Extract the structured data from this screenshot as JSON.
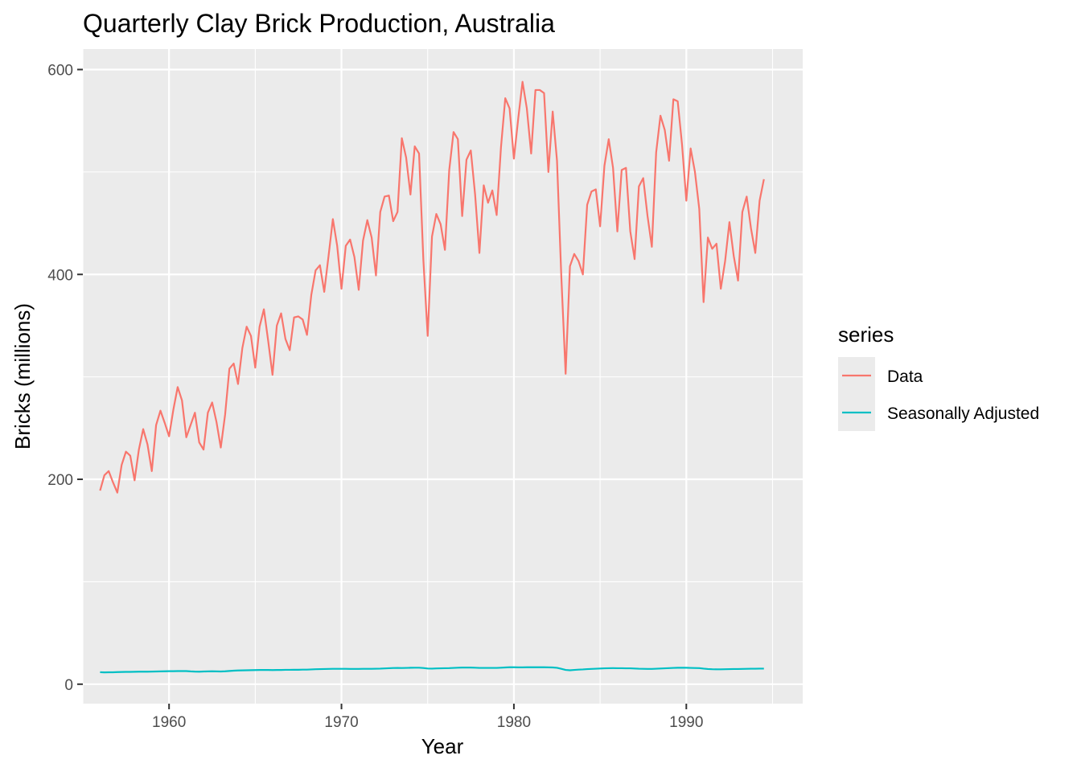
{
  "chart_data": {
    "type": "line",
    "title": "Quarterly Clay Brick Production, Australia",
    "xlabel": "Year",
    "ylabel": "Bricks (millions)",
    "xlim": [
      1955.0,
      1996.75
    ],
    "ylim": [
      -19,
      620
    ],
    "x_ticks": [
      1960,
      1970,
      1980,
      1990
    ],
    "y_ticks": [
      0,
      200,
      400,
      600
    ],
    "grid": true,
    "legend": {
      "title": "series",
      "position": "right"
    },
    "colors": {
      "data": "#F8766D",
      "seasonally_adjusted": "#00BFC4",
      "panel": "#EBEBEB",
      "grid": "#FFFFFF"
    },
    "x": [
      1956.0,
      1956.25,
      1956.5,
      1956.75,
      1957.0,
      1957.25,
      1957.5,
      1957.75,
      1958.0,
      1958.25,
      1958.5,
      1958.75,
      1959.0,
      1959.25,
      1959.5,
      1959.75,
      1960.0,
      1960.25,
      1960.5,
      1960.75,
      1961.0,
      1961.25,
      1961.5,
      1961.75,
      1962.0,
      1962.25,
      1962.5,
      1962.75,
      1963.0,
      1963.25,
      1963.5,
      1963.75,
      1964.0,
      1964.25,
      1964.5,
      1964.75,
      1965.0,
      1965.25,
      1965.5,
      1965.75,
      1966.0,
      1966.25,
      1966.5,
      1966.75,
      1967.0,
      1967.25,
      1967.5,
      1967.75,
      1968.0,
      1968.25,
      1968.5,
      1968.75,
      1969.0,
      1969.25,
      1969.5,
      1969.75,
      1970.0,
      1970.25,
      1970.5,
      1970.75,
      1971.0,
      1971.25,
      1971.5,
      1971.75,
      1972.0,
      1972.25,
      1972.5,
      1972.75,
      1973.0,
      1973.25,
      1973.5,
      1973.75,
      1974.0,
      1974.25,
      1974.5,
      1974.75,
      1975.0,
      1975.25,
      1975.5,
      1975.75,
      1976.0,
      1976.25,
      1976.5,
      1976.75,
      1977.0,
      1977.25,
      1977.5,
      1977.75,
      1978.0,
      1978.25,
      1978.5,
      1978.75,
      1979.0,
      1979.25,
      1979.5,
      1979.75,
      1980.0,
      1980.25,
      1980.5,
      1980.75,
      1981.0,
      1981.25,
      1981.5,
      1981.75,
      1982.0,
      1982.25,
      1982.5,
      1982.75,
      1983.0,
      1983.25,
      1983.5,
      1983.75,
      1984.0,
      1984.25,
      1984.5,
      1984.75,
      1985.0,
      1985.25,
      1985.5,
      1985.75,
      1986.0,
      1986.25,
      1986.5,
      1986.75,
      1987.0,
      1987.25,
      1987.5,
      1987.75,
      1988.0,
      1988.25,
      1988.5,
      1988.75,
      1989.0,
      1989.25,
      1989.5,
      1989.75,
      1990.0,
      1990.25,
      1990.5,
      1990.75,
      1991.0,
      1991.25,
      1991.5,
      1991.75,
      1992.0,
      1992.25,
      1992.5,
      1992.75,
      1993.0,
      1993.25,
      1993.5,
      1993.75,
      1994.0,
      1994.25,
      1994.5
    ],
    "series": [
      {
        "name": "Data",
        "values": [
          189,
          204,
          208,
          197,
          187,
          214,
          227,
          223,
          199,
          229,
          249,
          234,
          208,
          253,
          267,
          255,
          242,
          268,
          290,
          277,
          241,
          253,
          265,
          236,
          229,
          265,
          275,
          256,
          231,
          263,
          308,
          313,
          293,
          328,
          349,
          340,
          309,
          349,
          366,
          335,
          302,
          350,
          362,
          337,
          326,
          358,
          359,
          356,
          341,
          380,
          404,
          409,
          383,
          418,
          454,
          428,
          386,
          428,
          434,
          417,
          385,
          433,
          453,
          436,
          399,
          461,
          476,
          477,
          452,
          461,
          533,
          514,
          478,
          525,
          518,
          414,
          340,
          437,
          459,
          449,
          424,
          502,
          539,
          532,
          457,
          512,
          521,
          478,
          421,
          487,
          470,
          482,
          458,
          524,
          572,
          562,
          513,
          552,
          588,
          562,
          518,
          580,
          580,
          577,
          500,
          559,
          511,
          398,
          303,
          408,
          420,
          413,
          400,
          468,
          481,
          483,
          447,
          506,
          532,
          504,
          442,
          502,
          504,
          442,
          415,
          486,
          494,
          457,
          427,
          519,
          555,
          541,
          511,
          571,
          569,
          527,
          472,
          523,
          500,
          464,
          373,
          436,
          425,
          430,
          386,
          413,
          451,
          418,
          394,
          461,
          476,
          445,
          421,
          472,
          493
        ]
      },
      {
        "name": "Seasonally Adjusted",
        "values": [
          11.7,
          11.5,
          11.6,
          11.6,
          11.8,
          11.9,
          12.0,
          12.0,
          12.1,
          12.2,
          12.2,
          12.2,
          12.3,
          12.4,
          12.5,
          12.6,
          12.7,
          12.7,
          12.8,
          12.8,
          12.8,
          12.5,
          12.3,
          12.2,
          12.4,
          12.5,
          12.6,
          12.5,
          12.4,
          12.6,
          12.9,
          13.2,
          13.4,
          13.5,
          13.6,
          13.7,
          13.8,
          13.9,
          13.9,
          13.9,
          13.8,
          13.9,
          13.9,
          14.0,
          14.0,
          14.1,
          14.1,
          14.2,
          14.2,
          14.4,
          14.6,
          14.7,
          14.8,
          14.9,
          15.0,
          15.0,
          15.0,
          15.0,
          14.9,
          14.9,
          14.9,
          15.0,
          15.0,
          15.0,
          15.1,
          15.2,
          15.4,
          15.6,
          15.8,
          15.9,
          15.8,
          15.9,
          16.0,
          16.1,
          16.1,
          15.8,
          15.3,
          15.2,
          15.4,
          15.5,
          15.6,
          15.7,
          15.9,
          16.1,
          16.2,
          16.2,
          16.2,
          16.1,
          15.9,
          15.9,
          15.9,
          15.9,
          15.9,
          16.1,
          16.3,
          16.5,
          16.5,
          16.4,
          16.4,
          16.5,
          16.5,
          16.5,
          16.5,
          16.5,
          16.4,
          16.3,
          16.0,
          15.0,
          13.9,
          13.6,
          13.9,
          14.2,
          14.4,
          14.7,
          14.9,
          15.1,
          15.3,
          15.5,
          15.6,
          15.7,
          15.6,
          15.6,
          15.5,
          15.5,
          15.3,
          15.1,
          15.0,
          14.9,
          14.9,
          15.1,
          15.3,
          15.5,
          15.7,
          15.9,
          16.0,
          16.1,
          16.0,
          15.9,
          15.8,
          15.7,
          15.2,
          14.8,
          14.6,
          14.5,
          14.5,
          14.6,
          14.7,
          14.8,
          14.8,
          14.9,
          15.0,
          15.1,
          15.1,
          15.2,
          15.2
        ]
      }
    ]
  }
}
